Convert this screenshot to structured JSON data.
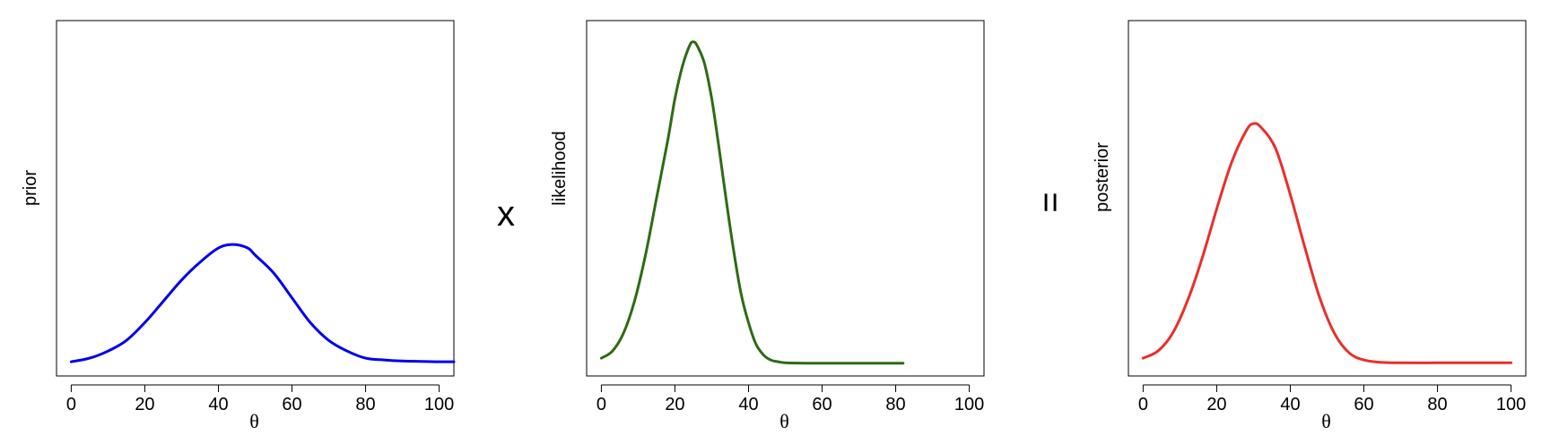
{
  "operators": [
    "x",
    "="
  ],
  "chart_data": [
    {
      "type": "line",
      "xlabel": "θ",
      "ylabel": "prior",
      "xlim": [
        -4,
        104
      ],
      "ylim": [
        0,
        1
      ],
      "x_ticks": [
        0,
        20,
        40,
        60,
        80,
        100
      ],
      "y_ticks_shown": false,
      "grid": false,
      "color": "#0000ee",
      "series": [
        {
          "x": [
            0,
            5,
            10,
            15,
            20,
            25,
            30,
            35,
            40,
            44,
            48,
            50,
            55,
            60,
            65,
            70,
            75,
            80,
            85,
            90,
            95,
            100,
            104
          ],
          "y": [
            0.04,
            0.05,
            0.07,
            0.1,
            0.15,
            0.21,
            0.27,
            0.32,
            0.36,
            0.37,
            0.36,
            0.34,
            0.29,
            0.22,
            0.15,
            0.1,
            0.07,
            0.05,
            0.045,
            0.042,
            0.041,
            0.04,
            0.04
          ]
        }
      ]
    },
    {
      "type": "line",
      "xlabel": "θ",
      "ylabel": "likelihood",
      "xlim": [
        -4,
        104
      ],
      "ylim": [
        0,
        1
      ],
      "x_ticks": [
        0,
        20,
        40,
        60,
        80,
        100
      ],
      "y_ticks_shown": false,
      "grid": false,
      "color": "#2e6b14",
      "series": [
        {
          "x": [
            0,
            3,
            6,
            9,
            12,
            15,
            18,
            20,
            22,
            24,
            25,
            26,
            28,
            30,
            32,
            34,
            36,
            38,
            40,
            42,
            44,
            46,
            48,
            50,
            55,
            60,
            70,
            82
          ],
          "y": [
            0.05,
            0.07,
            0.12,
            0.21,
            0.34,
            0.5,
            0.66,
            0.78,
            0.87,
            0.93,
            0.94,
            0.93,
            0.88,
            0.78,
            0.64,
            0.49,
            0.35,
            0.23,
            0.15,
            0.09,
            0.06,
            0.045,
            0.04,
            0.037,
            0.036,
            0.036,
            0.036,
            0.036
          ]
        }
      ]
    },
    {
      "type": "line",
      "xlabel": "θ",
      "ylabel": "posterior",
      "xlim": [
        -4,
        104
      ],
      "ylim": [
        0,
        1
      ],
      "x_ticks": [
        0,
        20,
        40,
        60,
        80,
        100
      ],
      "y_ticks_shown": false,
      "grid": false,
      "color": "#e8302a",
      "series": [
        {
          "x": [
            0,
            4,
            8,
            12,
            16,
            20,
            24,
            28,
            30,
            32,
            36,
            40,
            44,
            48,
            52,
            56,
            60,
            65,
            70,
            80,
            90,
            100
          ],
          "y": [
            0.05,
            0.07,
            0.12,
            0.21,
            0.33,
            0.47,
            0.6,
            0.69,
            0.71,
            0.7,
            0.64,
            0.51,
            0.36,
            0.22,
            0.12,
            0.065,
            0.045,
            0.038,
            0.037,
            0.037,
            0.037,
            0.037
          ]
        }
      ]
    }
  ]
}
